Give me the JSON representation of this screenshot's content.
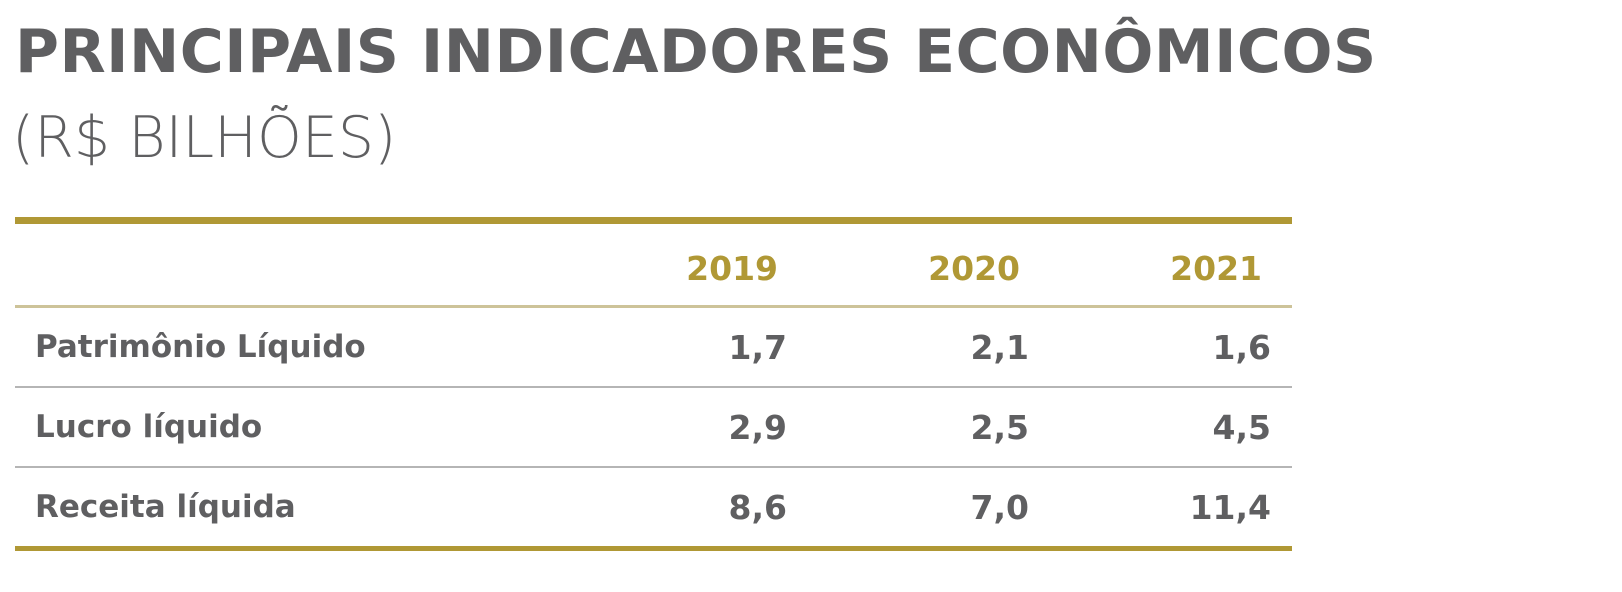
{
  "title": "PRINCIPAIS INDICADORES ECONÔMICOS",
  "subtitle": "(R$ BILHÕES)",
  "colors": {
    "gold": "#b09835",
    "text": "#5f5f61",
    "header_divider": "#cdc399",
    "row_divider": "#b5b5b5"
  },
  "table": {
    "columns": [
      "2019",
      "2020",
      "2021"
    ],
    "rows": [
      {
        "label": "Patrimônio Líquido",
        "values": [
          "1,7",
          "2,1",
          "1,6"
        ]
      },
      {
        "label": "Lucro líquido",
        "values": [
          "2,9",
          "2,5",
          "4,5"
        ]
      },
      {
        "label": "Receita líquida",
        "values": [
          "8,6",
          "7,0",
          "11,4"
        ]
      }
    ]
  }
}
